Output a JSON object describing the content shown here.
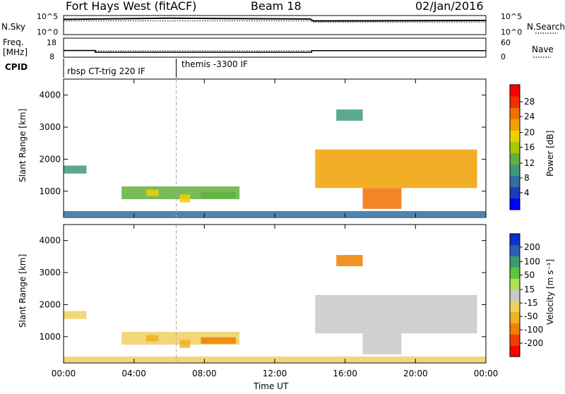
{
  "header": {
    "station": "Fort Hays West (fitACF)",
    "beam": "Beam 18",
    "date": "02/Jan/2016"
  },
  "top_panel": {
    "left_label": "N.Sky",
    "right_label": "N.Search",
    "left_ticks": [
      "10^5",
      "10^0"
    ],
    "right_ticks": [
      "10^5",
      "10^0"
    ]
  },
  "freq_panel": {
    "left_label_1": "Freq.",
    "left_label_2": "[MHz]",
    "right_label": "Nave",
    "left_ticks": [
      "18",
      "8"
    ],
    "right_ticks": [
      "60",
      "0"
    ]
  },
  "cpid": {
    "label": "CPID",
    "segment_1": "rbsp CT-trig 220 IF",
    "segment_2": "themis -3300 IF"
  },
  "colorbars": {
    "power": {
      "title": "Power [dB]",
      "ticks": [
        "28",
        "24",
        "20",
        "16",
        "12",
        "8",
        "4"
      ],
      "colors": [
        "#0000ff",
        "#1a3cb8",
        "#2e6ea3",
        "#3e9a7a",
        "#60b040",
        "#a8c800",
        "#f0d000",
        "#f0a000",
        "#f07000",
        "#f03000",
        "#ff0000"
      ]
    },
    "velocity": {
      "title": "Velocity [m s⁻¹]",
      "ticks": [
        "200",
        "100",
        "50",
        "15",
        "-15",
        "-50",
        "-100",
        "-200"
      ],
      "colors": [
        "#ff0000",
        "#f04000",
        "#f08000",
        "#f0b020",
        "#f0d060",
        "#c8c8c8",
        "#b0e050",
        "#60c040",
        "#3a9a70",
        "#2a60b0",
        "#1030c8"
      ]
    }
  },
  "chart_data": {
    "type": "heatmap",
    "xlabel": "Time UT",
    "x_ticks": [
      "00:00",
      "04:00",
      "08:00",
      "12:00",
      "16:00",
      "20:00",
      "00:00"
    ],
    "xlim": [
      0,
      24
    ],
    "ylabel": "Slant Range [km]",
    "y_ticks": [
      1000,
      2000,
      3000,
      4000
    ],
    "ylim": [
      180,
      4500
    ],
    "noise_sky": [
      [
        0,
        4.0
      ],
      [
        6,
        4.3
      ],
      [
        14,
        4.1
      ],
      [
        14.2,
        3.6
      ],
      [
        24,
        3.7
      ]
    ],
    "noise_search": [
      [
        0,
        3.6
      ],
      [
        14,
        3.6
      ],
      [
        14.2,
        3.3
      ],
      [
        24,
        3.3
      ]
    ],
    "frequency": [
      [
        0,
        11.5
      ],
      [
        1.8,
        11.5
      ],
      [
        1.8,
        10.6
      ],
      [
        14.1,
        10.6
      ],
      [
        14.1,
        11.4
      ],
      [
        24,
        11.4
      ]
    ],
    "nave": [
      [
        0,
        20
      ],
      [
        24,
        20
      ]
    ],
    "cpid_change_time": 6.4,
    "echo_regions": [
      {
        "name": "A",
        "t0": 0.0,
        "t1": 1.3,
        "r0": 1550,
        "r1": 1800,
        "power": 12,
        "velocity": -25
      },
      {
        "name": "B",
        "t0": 3.3,
        "t1": 10.0,
        "r0": 750,
        "r1": 1150,
        "power": 14,
        "velocity": -20
      },
      {
        "name": "C",
        "t0": 4.7,
        "t1": 5.4,
        "r0": 850,
        "r1": 1050,
        "power": 20,
        "velocity": -30
      },
      {
        "name": "D",
        "t0": 6.6,
        "t1": 7.2,
        "r0": 650,
        "r1": 900,
        "power": 20,
        "velocity": -40
      },
      {
        "name": "E",
        "t0": 7.8,
        "t1": 9.8,
        "r0": 780,
        "r1": 980,
        "power": 14,
        "velocity": -60
      },
      {
        "name": "F",
        "t0": 0.0,
        "t1": 24.0,
        "r0": 200,
        "r1": 380,
        "power": 8,
        "velocity": -20
      },
      {
        "name": "G",
        "t0": 15.5,
        "t1": 17.0,
        "r0": 3200,
        "r1": 3550,
        "power": 10,
        "velocity": -80
      },
      {
        "name": "H",
        "t0": 14.3,
        "t1": 23.5,
        "r0": 1100,
        "r1": 2300,
        "power": 24,
        "velocity": 0
      },
      {
        "name": "I",
        "t0": 17.0,
        "t1": 19.2,
        "r0": 450,
        "r1": 1100,
        "power": 26,
        "velocity": 0
      }
    ]
  }
}
